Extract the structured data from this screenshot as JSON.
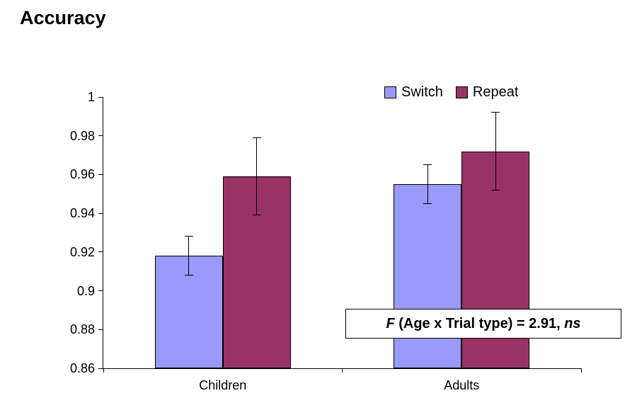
{
  "title": "Accuracy",
  "chart_data": {
    "type": "bar",
    "title": "Accuracy",
    "categories": [
      "Children",
      "Adults"
    ],
    "series": [
      {
        "name": "Switch",
        "color": "#9999ff",
        "values": [
          0.918,
          0.955
        ],
        "errors": [
          0.01,
          0.01
        ]
      },
      {
        "name": "Repeat",
        "color": "#993366",
        "values": [
          0.959,
          0.972
        ],
        "errors": [
          0.02,
          0.02
        ]
      }
    ],
    "ylim": [
      0.86,
      1.0
    ],
    "ytick_step": 0.02,
    "ytick_labels": [
      "0.86",
      "0.88",
      "0.9",
      "0.92",
      "0.94",
      "0.96",
      "0.98",
      "1"
    ],
    "xlabel": "",
    "ylabel": "",
    "grid": false,
    "legend_position": "top-right",
    "annotation": {
      "f": "F",
      "body": " (Age x Trial type) = 2.91, ",
      "ns": "ns"
    }
  }
}
